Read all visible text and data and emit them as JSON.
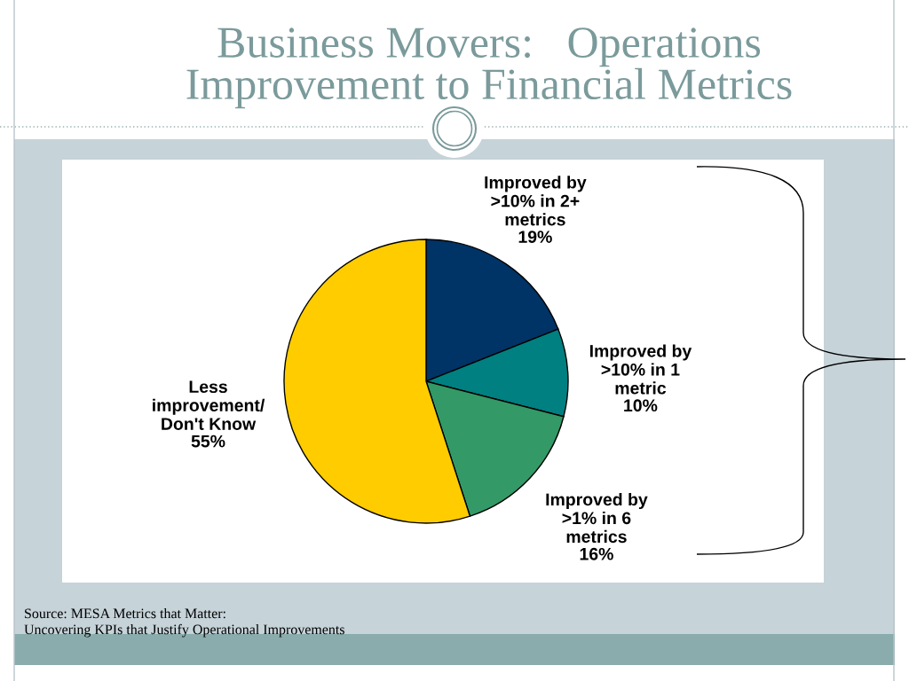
{
  "chart_data": {
    "type": "pie",
    "title": "Business Movers:   Operations\nImprovement to Financial Metrics",
    "categories": [
      "Improved by\n>10% in 2+\nmetrics",
      "Improved by\n>10% in 1\nmetric",
      "Improved by\n>1% in 6\nmetrics",
      "Less\nimprovement/\nDon't Know"
    ],
    "values": [
      19,
      10,
      16,
      55
    ],
    "colors": [
      "#003366",
      "#008080",
      "#339966",
      "#ffcc00"
    ],
    "value_labels": [
      "19%",
      "10%",
      "16%",
      "55%"
    ],
    "annotations": [
      "Source: MESA Metrics that Matter:\nUncovering KPIs that Justify Operational Improvements"
    ]
  }
}
